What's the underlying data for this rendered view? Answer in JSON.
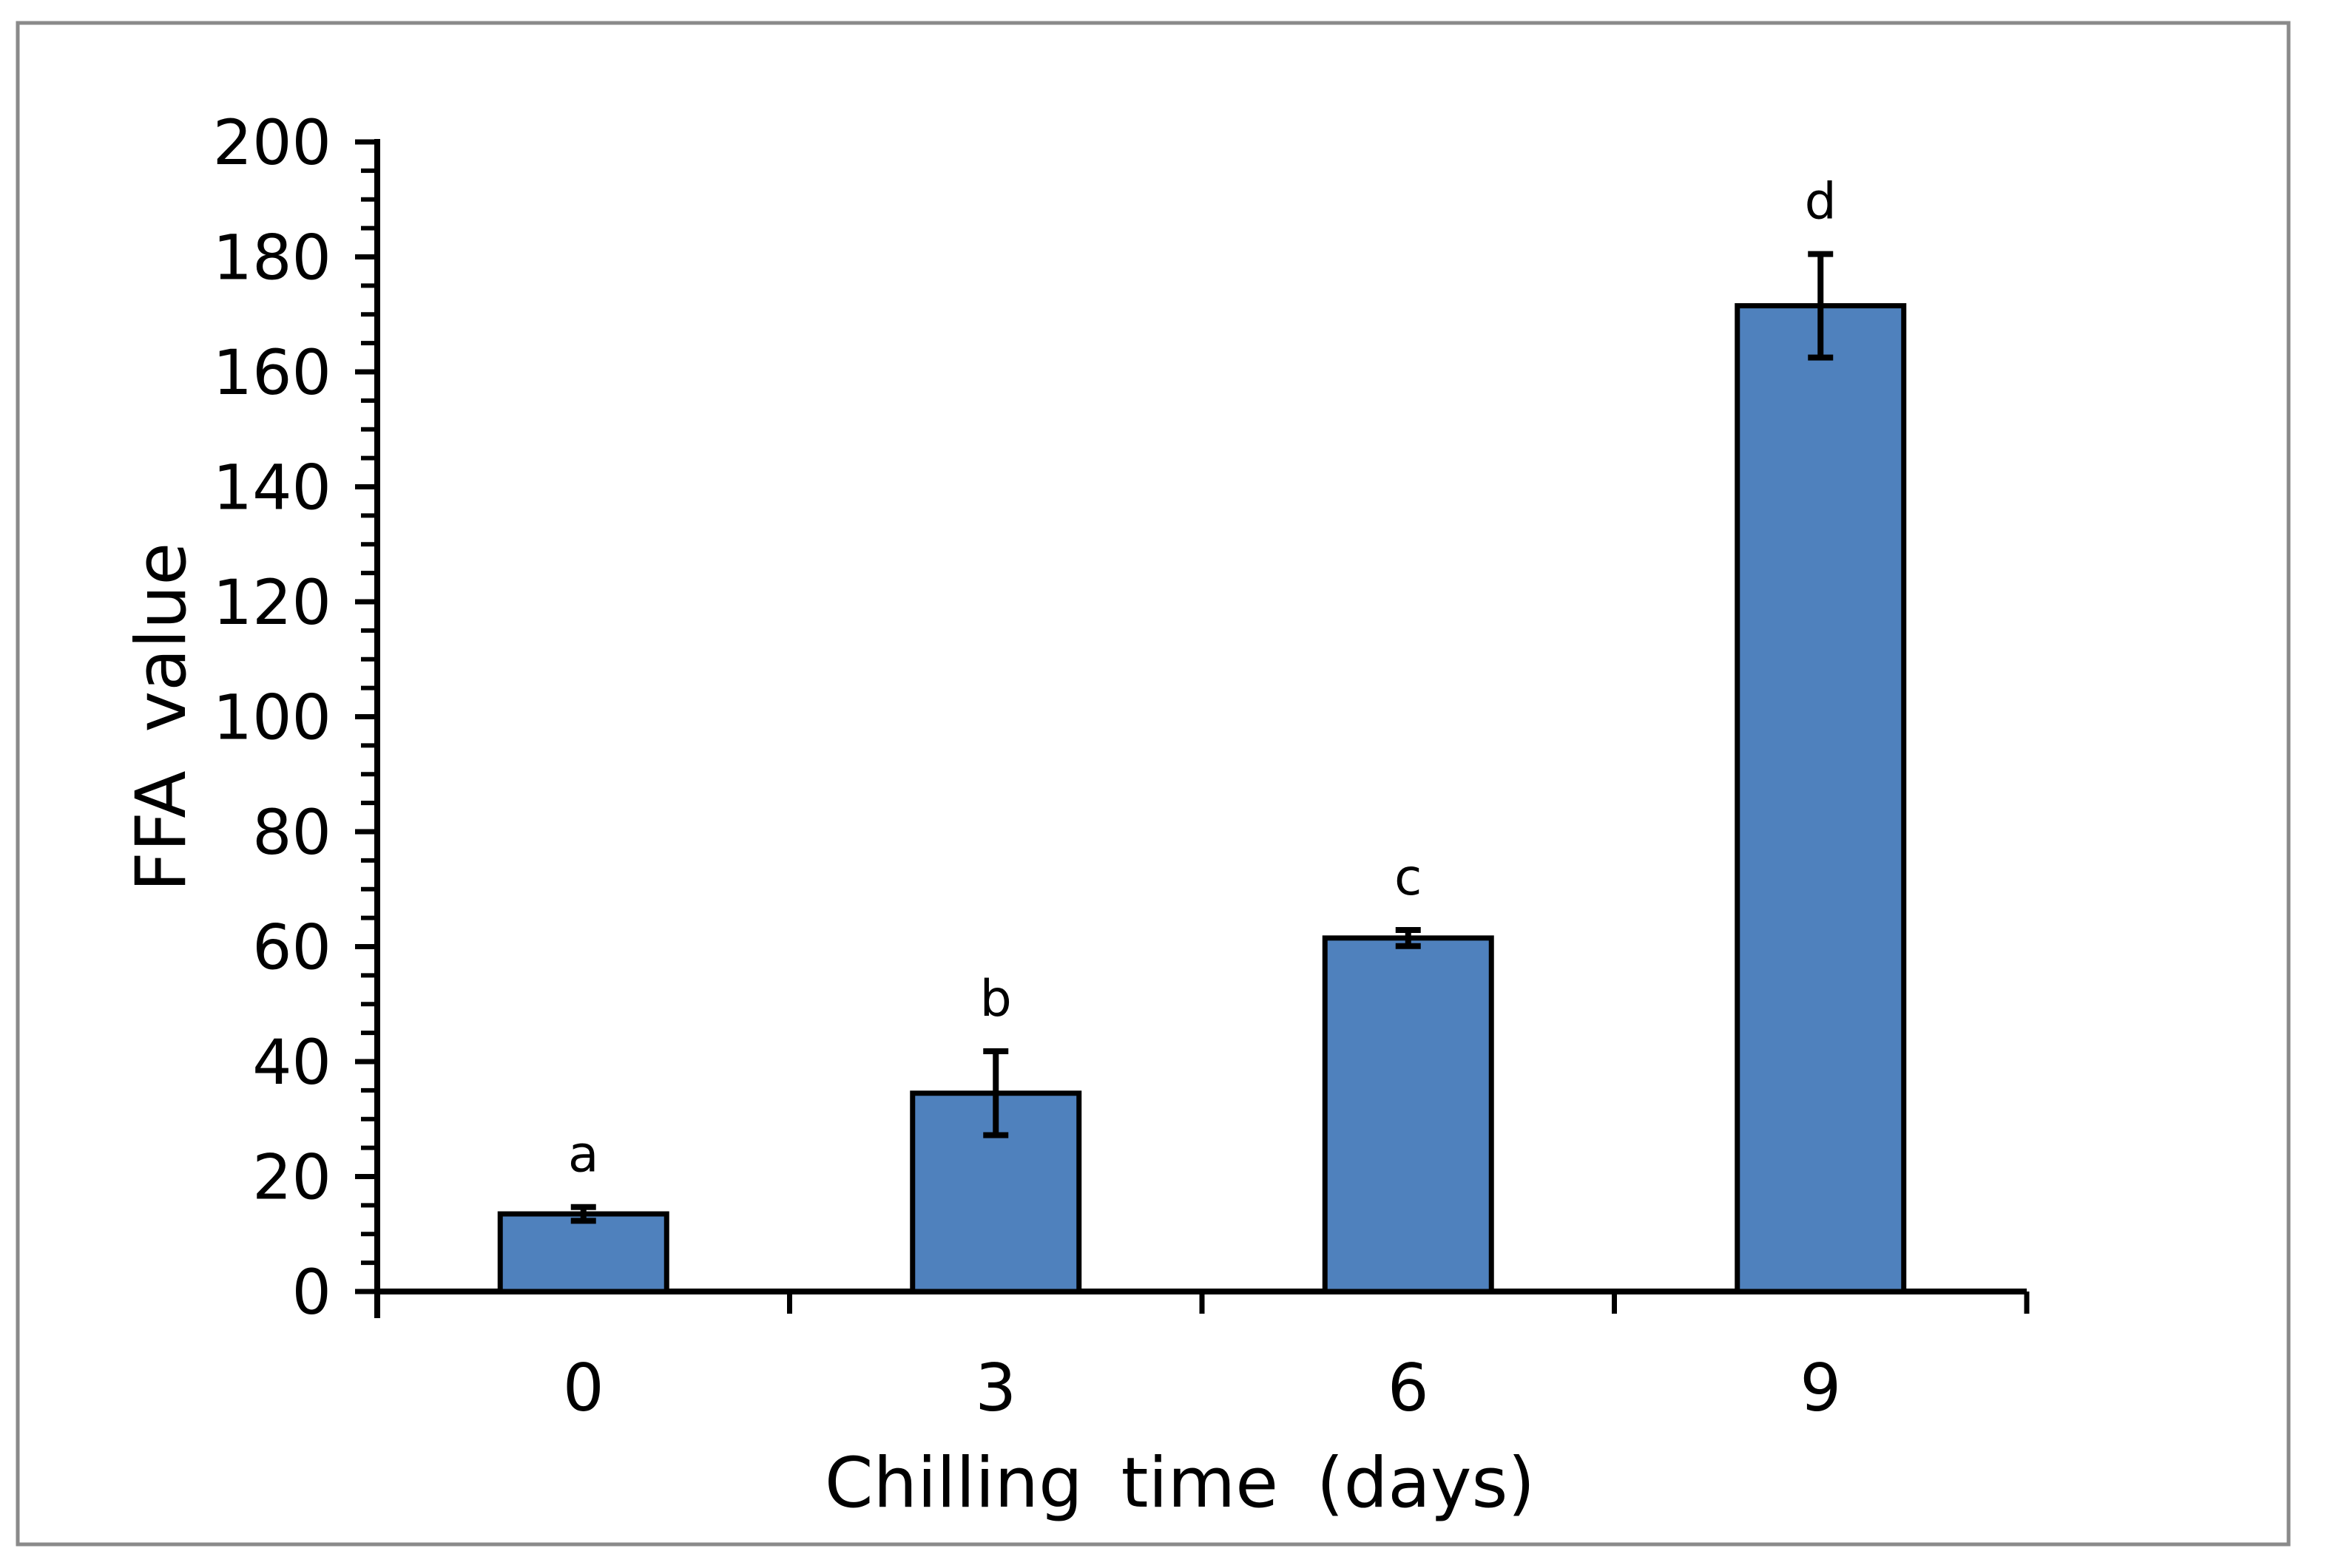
{
  "figure": {
    "background": "#FFFFFF",
    "frame_border_color": "#8A8A8A"
  },
  "chart_data": {
    "type": "bar",
    "title": "",
    "xlabel": "Chilling time (days)",
    "ylabel": "FFA value",
    "categories": [
      "0",
      "3",
      "6",
      "9"
    ],
    "values": [
      13.5,
      34.5,
      61.5,
      171.5
    ],
    "error_bars": [
      1.2,
      7.3,
      1.4,
      9.0
    ],
    "bar_letters": [
      "a",
      "b",
      "c",
      "d"
    ],
    "ylim": [
      0,
      200
    ],
    "y_major_step": 20,
    "y_minor_step": 5,
    "y_tick_labels": [
      "0",
      "20",
      "40",
      "60",
      "80",
      "100",
      "120",
      "140",
      "160",
      "180",
      "200"
    ],
    "grid": "off",
    "legend": "none",
    "bar_color": "#4F81BD",
    "bar_border_color": "#000000",
    "error_bar_color": "#000000",
    "axis_color": "#000000",
    "text_color": "#000000"
  }
}
